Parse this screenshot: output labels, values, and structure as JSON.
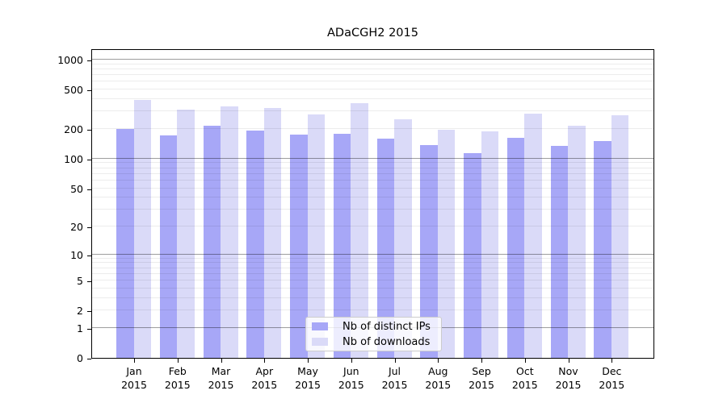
{
  "chart_data": {
    "type": "bar",
    "title": "ADaCGH2 2015",
    "categories": [
      "Jan",
      "Feb",
      "Mar",
      "Apr",
      "May",
      "Jun",
      "Jul",
      "Aug",
      "Sep",
      "Oct",
      "Nov",
      "Dec"
    ],
    "x_tick_year": "2015",
    "series": [
      {
        "name": "Nb of distinct IPs",
        "color": "#a7a7f7",
        "values": [
          200,
          172,
          216,
          192,
          175,
          180,
          159,
          137,
          114,
          164,
          135,
          152
        ]
      },
      {
        "name": "Nb of downloads",
        "color": "#dadaf8",
        "values": [
          395,
          314,
          339,
          324,
          280,
          365,
          249,
          196,
          190,
          287,
          216,
          276
        ]
      }
    ],
    "y_ticks": [
      0,
      1,
      2,
      5,
      10,
      20,
      50,
      100,
      200,
      500,
      1000
    ],
    "y_scale": "log1p",
    "ylim": [
      0,
      1300
    ],
    "grid": "horizontal-log-minor-and-major",
    "legend_position": "inside-bottom-center"
  }
}
